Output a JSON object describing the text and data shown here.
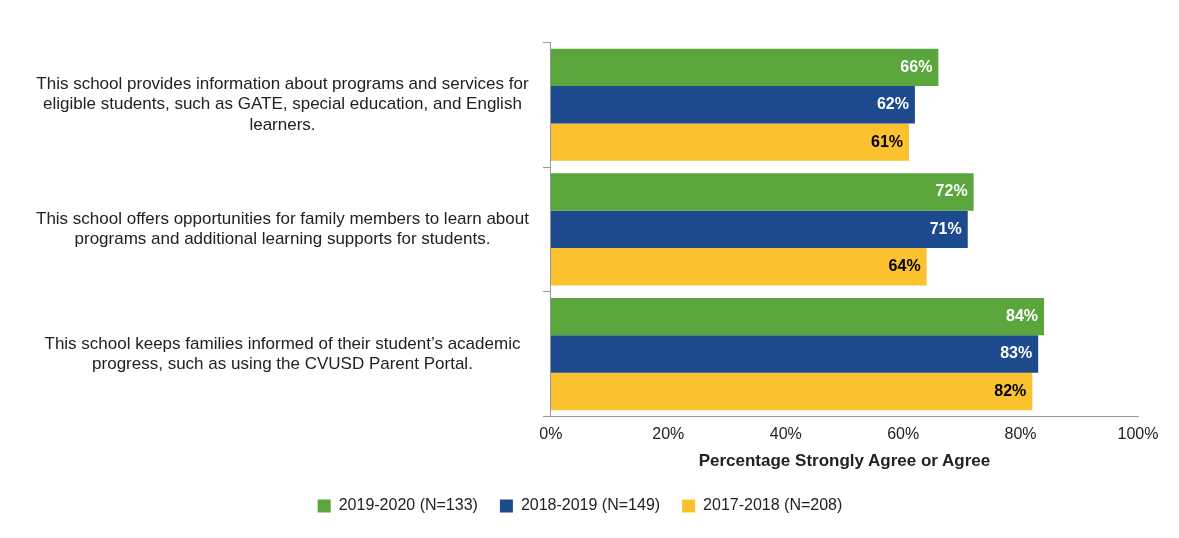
{
  "chart_data": {
    "type": "bar",
    "orientation": "horizontal",
    "xlabel": "Percentage Strongly Agree or Agree",
    "categories": [
      "This school provides information about programs and services for eligible students, such as GATE, special education, and English learners.",
      "This school offers opportunities for family members to learn about programs and additional learning supports for students.",
      "This school keeps families informed of their student’s academic progress, such as using the CVUSD Parent Portal."
    ],
    "series": [
      {
        "name": "2019-2020 (N=133)",
        "color": "#5aa63c",
        "values": [
          66,
          72,
          84
        ],
        "value_labels": [
          "66%",
          "72%",
          "84%"
        ]
      },
      {
        "name": "2018-2019 (N=149)",
        "color": "#1d4a8c",
        "values": [
          62,
          71,
          83
        ],
        "value_labels": [
          "62%",
          "71%",
          "83%"
        ]
      },
      {
        "name": "2017-2018 (N=208)",
        "color": "#fcc12e",
        "values": [
          61,
          64,
          82
        ],
        "value_labels": [
          "61%",
          "64%",
          "82%"
        ]
      }
    ],
    "xlim": [
      0,
      100
    ],
    "xticks": [
      {
        "value": 0,
        "label": "0%"
      },
      {
        "value": 20,
        "label": "20%"
      },
      {
        "value": 40,
        "label": "40%"
      },
      {
        "value": 60,
        "label": "60%"
      },
      {
        "value": 80,
        "label": "80%"
      },
      {
        "value": 100,
        "label": "100%"
      }
    ],
    "grid": false,
    "legend": "bottom"
  }
}
